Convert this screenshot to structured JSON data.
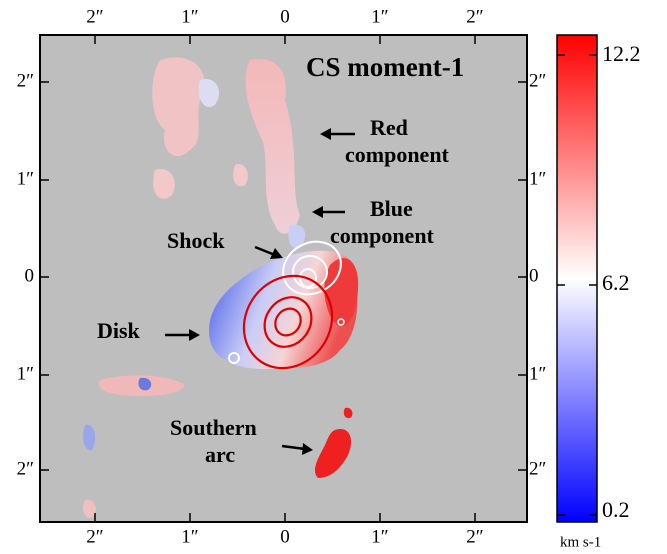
{
  "title": "CS moment-1",
  "annotations": [
    {
      "lines": [
        "Red",
        "component"
      ]
    },
    {
      "lines": [
        "Blue",
        "component"
      ]
    },
    {
      "lines": [
        "Shock"
      ]
    },
    {
      "lines": [
        "Disk"
      ]
    },
    {
      "lines": [
        "Southern",
        "arc"
      ]
    }
  ],
  "axes": {
    "top_ticks": [
      "2″",
      "1″",
      "0",
      "1″",
      "2″"
    ],
    "bottom_ticks": [
      "2″",
      "1″",
      "0",
      "1″",
      "2″"
    ],
    "left_ticks": [
      "2″",
      "1″",
      "0",
      "1″",
      "2″"
    ],
    "right_ticks": [
      "2″",
      "1″",
      "0",
      "1″",
      "2″"
    ]
  },
  "colorbar": {
    "ticks": [
      "12.2",
      "6.2",
      "0.2"
    ],
    "unit": "km s-1"
  }
}
